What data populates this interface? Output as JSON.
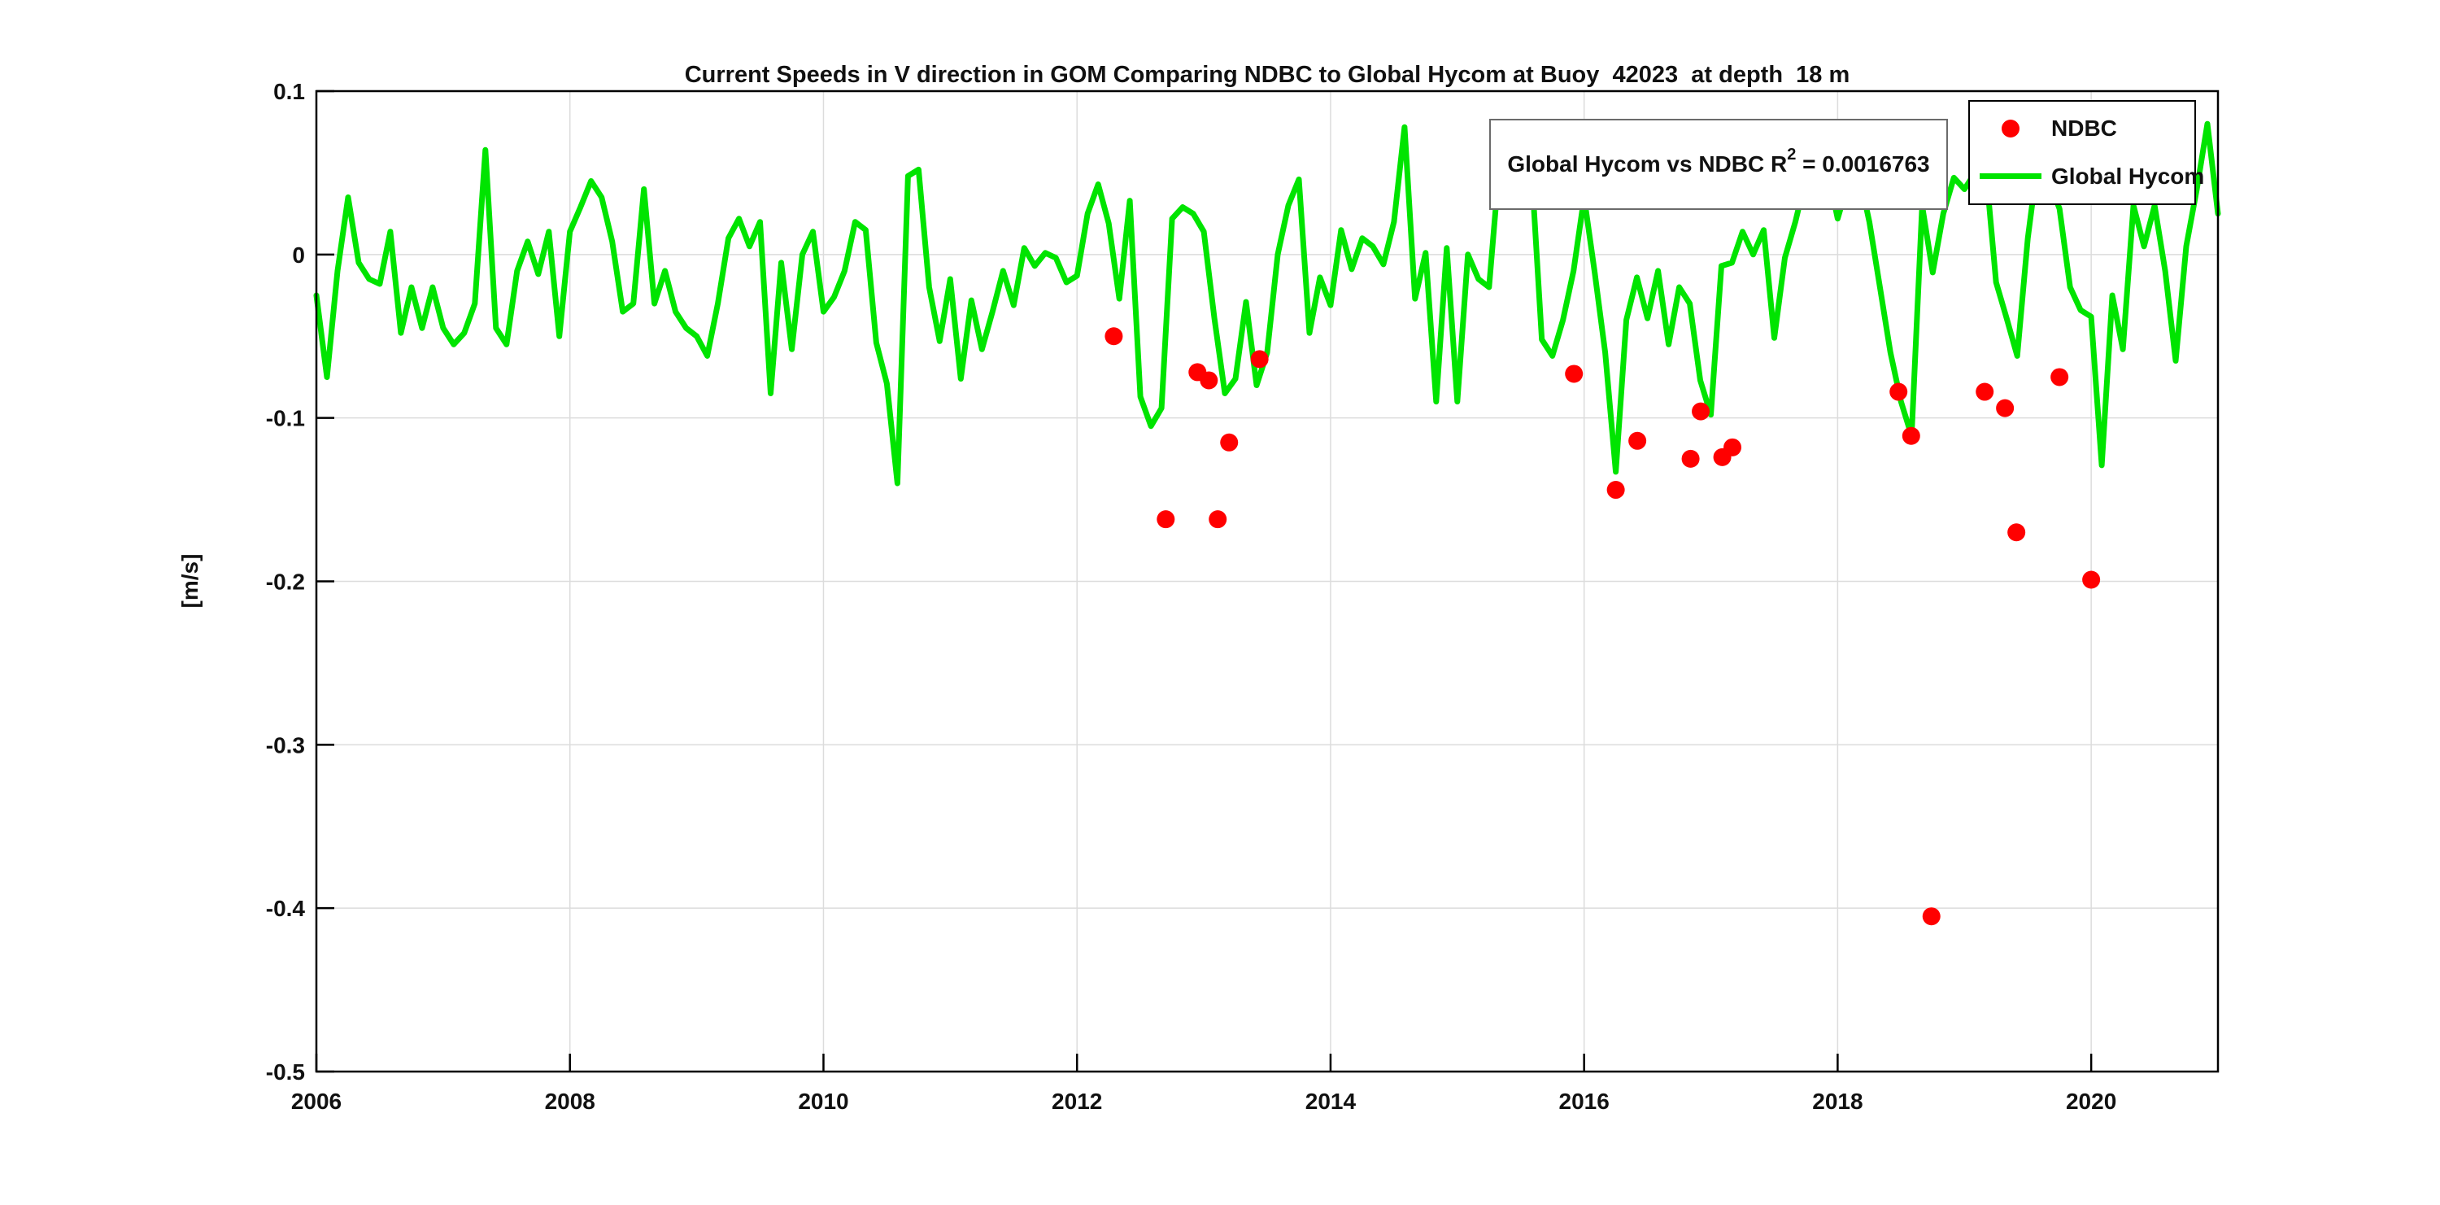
{
  "chart_data": {
    "type": "line-scatter",
    "title": "Current Speeds in V direction in GOM Comparing NDBC to Global Hycom at Buoy  42023  at depth  18 m",
    "xlabel": "",
    "ylabel": "[m/s]",
    "xlim": [
      2006,
      2021
    ],
    "ylim": [
      -0.5,
      0.1
    ],
    "x_ticks": [
      2006,
      2008,
      2010,
      2012,
      2014,
      2016,
      2018,
      2020
    ],
    "y_ticks": [
      0.1,
      0,
      -0.1,
      -0.2,
      -0.3,
      -0.4,
      -0.5
    ],
    "y_tick_labels": [
      "0.1",
      "0",
      "-0.1",
      "-0.2",
      "-0.3",
      "-0.4",
      "-0.5"
    ],
    "grid": true,
    "colors": {
      "ndbc": "#ff0000",
      "hycom": "#00e400",
      "grid": "#dcdcdc",
      "axis": "#000000",
      "text": "#111111",
      "annotation_border": "#6b6b6b"
    },
    "annotation": {
      "prefix": "Global Hycom vs NDBC R",
      "sup": "2",
      "suffix": " = 0.0016763"
    },
    "legend": [
      {
        "label": "NDBC",
        "marker": "dot",
        "color": "#ff0000"
      },
      {
        "label": "Global Hycom",
        "marker": "line",
        "color": "#00e400"
      }
    ],
    "series": [
      {
        "name": "Global Hycom",
        "type": "line",
        "color": "#00e400",
        "x_start": 2006.0,
        "x_step_months": 1,
        "values": [
          -0.025,
          -0.075,
          -0.01,
          0.035,
          -0.005,
          -0.015,
          -0.018,
          0.014,
          -0.048,
          -0.02,
          -0.045,
          -0.02,
          -0.045,
          -0.055,
          -0.048,
          -0.03,
          0.064,
          -0.045,
          -0.055,
          -0.01,
          0.008,
          -0.012,
          0.014,
          -0.05,
          0.014,
          0.029,
          0.045,
          0.035,
          0.008,
          -0.035,
          -0.03,
          0.04,
          -0.03,
          -0.01,
          -0.035,
          -0.045,
          -0.05,
          -0.062,
          -0.03,
          0.01,
          0.022,
          0.005,
          0.02,
          -0.085,
          -0.005,
          -0.058,
          0.0,
          0.014,
          -0.035,
          -0.026,
          -0.01,
          0.02,
          0.015,
          -0.054,
          -0.079,
          -0.14,
          0.048,
          0.052,
          -0.02,
          -0.053,
          -0.015,
          -0.076,
          -0.028,
          -0.058,
          -0.035,
          -0.01,
          -0.031,
          0.004,
          -0.007,
          0.001,
          -0.002,
          -0.017,
          -0.013,
          0.025,
          0.043,
          0.019,
          -0.027,
          0.033,
          -0.087,
          -0.105,
          -0.094,
          0.022,
          0.029,
          0.025,
          0.014,
          -0.039,
          -0.085,
          -0.076,
          -0.029,
          -0.08,
          -0.06,
          0.0,
          0.03,
          0.046,
          -0.048,
          -0.014,
          -0.031,
          0.015,
          -0.009,
          0.01,
          0.005,
          -0.006,
          0.02,
          0.078,
          -0.027,
          0.001,
          -0.09,
          0.004,
          -0.09,
          0.0,
          -0.015,
          -0.02,
          0.057,
          0.065,
          0.051,
          0.055,
          -0.052,
          -0.062,
          -0.04,
          -0.01,
          0.035,
          -0.011,
          -0.06,
          -0.133,
          -0.04,
          -0.014,
          -0.039,
          -0.01,
          -0.055,
          -0.02,
          -0.03,
          -0.077,
          -0.098,
          -0.007,
          -0.005,
          0.014,
          0.0,
          0.015,
          -0.051,
          -0.002,
          0.02,
          0.047,
          0.03,
          0.053,
          0.022,
          0.044,
          0.05,
          0.02,
          -0.02,
          -0.06,
          -0.09,
          -0.111,
          0.03,
          -0.011,
          0.025,
          0.047,
          0.04,
          0.05,
          0.055,
          -0.017,
          -0.039,
          -0.062,
          0.01,
          0.06,
          0.045,
          0.028,
          -0.02,
          -0.034,
          -0.038,
          -0.129,
          -0.025,
          -0.058,
          0.03,
          0.005,
          0.03,
          -0.01,
          -0.065,
          0.005,
          0.04,
          0.08,
          0.025
        ]
      },
      {
        "name": "NDBC",
        "type": "scatter",
        "color": "#ff0000",
        "points": [
          [
            2012.29,
            -0.05
          ],
          [
            2012.7,
            -0.162
          ],
          [
            2012.95,
            -0.072
          ],
          [
            2013.04,
            -0.077
          ],
          [
            2013.11,
            -0.162
          ],
          [
            2013.2,
            -0.115
          ],
          [
            2013.44,
            -0.064
          ],
          [
            2015.92,
            -0.073
          ],
          [
            2016.25,
            -0.144
          ],
          [
            2016.42,
            -0.114
          ],
          [
            2016.84,
            -0.125
          ],
          [
            2016.92,
            -0.096
          ],
          [
            2017.09,
            -0.124
          ],
          [
            2017.17,
            -0.118
          ],
          [
            2018.48,
            -0.084
          ],
          [
            2018.58,
            -0.111
          ],
          [
            2018.74,
            -0.405
          ],
          [
            2019.16,
            -0.084
          ],
          [
            2019.32,
            -0.094
          ],
          [
            2019.41,
            -0.17
          ],
          [
            2019.75,
            -0.075
          ],
          [
            2020.0,
            -0.199
          ]
        ]
      }
    ]
  }
}
